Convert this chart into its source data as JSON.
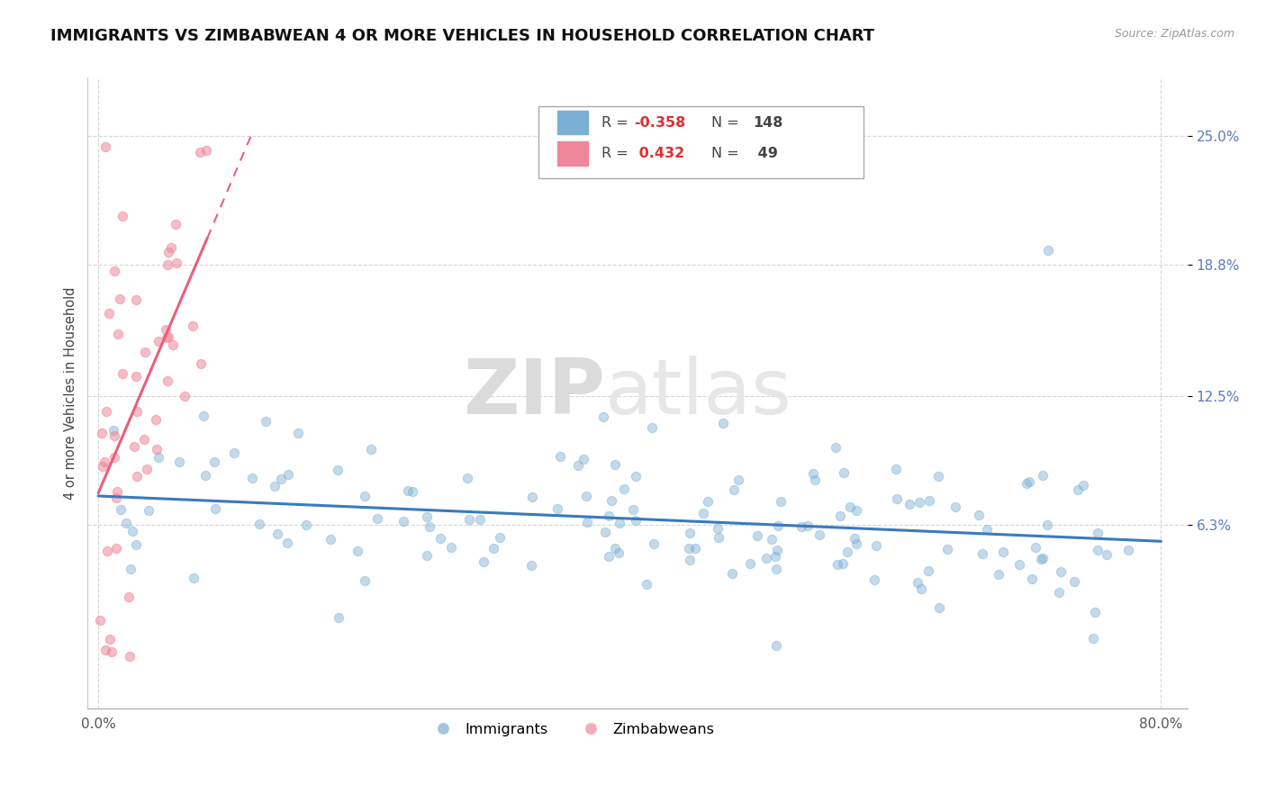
{
  "title": "IMMIGRANTS VS ZIMBABWEAN 4 OR MORE VEHICLES IN HOUSEHOLD CORRELATION CHART",
  "source_text": "Source: ZipAtlas.com",
  "ylabel": "4 or more Vehicles in Household",
  "immigrants_color": "#7bafd4",
  "zimbabweans_color": "#f0869a",
  "watermark_zip": "ZIP",
  "watermark_atlas": "atlas",
  "background_color": "#ffffff",
  "grid_color": "#cccccc",
  "title_fontsize": 13,
  "ytick_color": "#5b7fbf",
  "xtick_color": "#555555",
  "legend_r1": "R = -0.358",
  "legend_n1": "N = 148",
  "legend_r2": "R =  0.432",
  "legend_n2": "N =  49"
}
